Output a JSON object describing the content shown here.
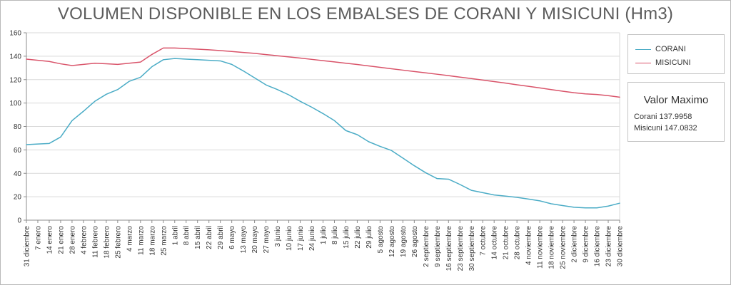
{
  "window": {
    "title": "VOLUMEN DISPONIBLE EN LOS EMBALSES DE CORANI Y MISICUNI (Hm3)"
  },
  "legend": {
    "items": [
      {
        "label": "CORANI",
        "color": "#4bacc6"
      },
      {
        "label": "MISICUNI",
        "color": "#d9546a"
      }
    ]
  },
  "max_box": {
    "title": "Valor Maximo",
    "lines": [
      "Corani 137.9958",
      "Misicuni 147.0832"
    ]
  },
  "chart_data": {
    "type": "line",
    "title": "VOLUMEN DISPONIBLE EN LOS EMBALSES DE CORANI Y MISICUNI (Hm3)",
    "xlabel": "",
    "ylabel": "",
    "ylim": [
      0,
      160
    ],
    "yticks": [
      0,
      20,
      40,
      60,
      80,
      100,
      120,
      140,
      160
    ],
    "grid": true,
    "legend_position": "right",
    "categories": [
      "31 diciembre",
      "7 enero",
      "14 enero",
      "21 enero",
      "28 enero",
      "4 febrero",
      "11 febrero",
      "18 febrero",
      "25 febrero",
      "4 marzo",
      "11 marzo",
      "18 marzo",
      "25 marzo",
      "1 abril",
      "8 abril",
      "15 abril",
      "22 abril",
      "29 abril",
      "6 mayo",
      "13 mayo",
      "20 mayo",
      "27 mayo",
      "3 junio",
      "10 junio",
      "17 junio",
      "24 junio",
      "1 julio",
      "8 julio",
      "15 julio",
      "22 julio",
      "29 julio",
      "5 agosto",
      "12 agosto",
      "19 agosto",
      "26 agosto",
      "2 septiembre",
      "9 septiembre",
      "16 septiembre",
      "23 septiembre",
      "30 septiembre",
      "7 octubre",
      "14 octubre",
      "21 octubre",
      "28 octubre",
      "4 noviembre",
      "11 noviembre",
      "18 noviembre",
      "25 noviembre",
      "2 diciembre",
      "9 diciembre",
      "16 diciembre",
      "23 diciembre",
      "30 diciembre"
    ],
    "series": [
      {
        "name": "CORANI",
        "color": "#4bacc6",
        "values": [
          64.5,
          65,
          65.5,
          71,
          85,
          93,
          101.5,
          107.5,
          111.5,
          118.5,
          122,
          131,
          137,
          138,
          137.5,
          137,
          136.5,
          136,
          133,
          127.5,
          121.5,
          115.5,
          111.5,
          107,
          101.5,
          96.5,
          91,
          85,
          76.5,
          73,
          67,
          63,
          59.5,
          53,
          46.5,
          40.5,
          35.5,
          35,
          30.5,
          25.5,
          23.5,
          21.5,
          20.5,
          19.5,
          18,
          16.5,
          14,
          12.5,
          11,
          10.5,
          10.5,
          12,
          14.5
        ]
      },
      {
        "name": "MISICUNI",
        "color": "#d9546a",
        "values": [
          137.5,
          136.5,
          135.5,
          133.5,
          132,
          133,
          134,
          133.5,
          133,
          134,
          135,
          141.5,
          147,
          147,
          146.5,
          146,
          145.5,
          144.8,
          144,
          143.2,
          142.4,
          141.4,
          140.4,
          139.4,
          138.4,
          137.3,
          136.2,
          135.1,
          134,
          132.9,
          131.7,
          130.5,
          129.3,
          128.1,
          126.9,
          125.8,
          124.6,
          123.4,
          122.1,
          120.9,
          119.6,
          118.3,
          117,
          115.6,
          114.3,
          112.9,
          111.5,
          110.1,
          108.8,
          107.8,
          107.3,
          106.3,
          105
        ]
      }
    ]
  }
}
